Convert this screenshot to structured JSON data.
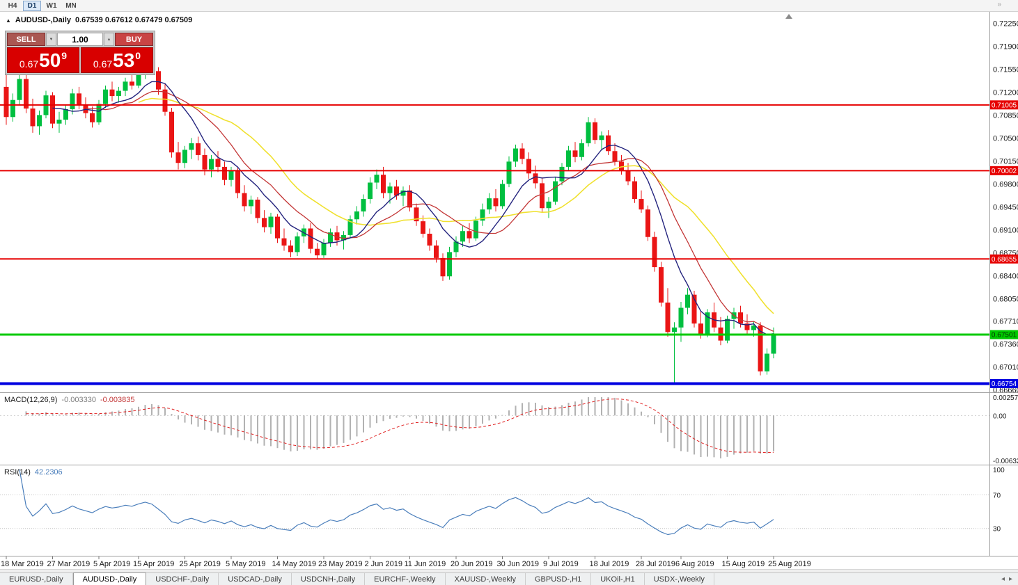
{
  "toolbar": {
    "timeframes": [
      {
        "label": "H4",
        "active": false
      },
      {
        "label": "D1",
        "active": true
      },
      {
        "label": "W1",
        "active": false
      },
      {
        "label": "MN",
        "active": false
      }
    ],
    "overflow_icon": "»"
  },
  "chart": {
    "symbol_title": "AUDUSD-,Daily",
    "ohlc_line": "0.67539 0.67612 0.67479 0.67509",
    "marker_icon": "▲",
    "trade_panel": {
      "sell_label": "SELL",
      "buy_label": "BUY",
      "volume": "1.00",
      "spinner_down_icon": "▼",
      "spinner_up_icon": "▲",
      "sell_price": {
        "prefix": "0.67",
        "big": "50",
        "sup": "9"
      },
      "buy_price": {
        "prefix": "0.67",
        "big": "53",
        "sup": "0"
      }
    },
    "price_axis_ticks": [
      "0.72250",
      "0.71900",
      "0.71550",
      "0.71200",
      "0.70850",
      "0.70500",
      "0.70150",
      "0.69800",
      "0.69450",
      "0.69100",
      "0.68750",
      "0.68400",
      "0.68050",
      "0.67710",
      "0.67360",
      "0.67010",
      "0.66660"
    ],
    "price_max": 0.7234,
    "price_min": 0.66642,
    "up_color": "#00bf40",
    "down_color": "#ea1515",
    "moving_averages": [
      {
        "period": 21,
        "color": "#f0e130",
        "width": 1.6
      },
      {
        "period": 13,
        "color": "#c33636",
        "width": 1.3
      },
      {
        "period": 8,
        "color": "#24247e",
        "width": 1.4
      }
    ],
    "hlines": [
      {
        "price": 0.71005,
        "label": "0.71005",
        "color": "#e60000",
        "thickness": 2,
        "text_color": "#ffffff"
      },
      {
        "price": 0.70002,
        "label": "0.70002",
        "color": "#e60000",
        "thickness": 2,
        "text_color": "#ffffff"
      },
      {
        "price": 0.68655,
        "label": "0.68655",
        "color": "#e60000",
        "thickness": 2,
        "text_color": "#ffffff"
      },
      {
        "price": 0.67501,
        "label": "0.67501",
        "color": "#00ca00",
        "thickness": 3,
        "text_color": "#063306"
      },
      {
        "price": 0.66754,
        "label": "0.66754",
        "color": "#0000e0",
        "thickness": 4,
        "text_color": "#ffffff"
      }
    ],
    "date_labels": [
      "18 Mar 2019",
      "27 Mar 2019",
      "5 Apr 2019",
      "15 Apr 2019",
      "25 Apr 2019",
      "5 May 2019",
      "14 May 2019",
      "23 May 2019",
      "2 Jun 2019",
      "11 Jun 2019",
      "20 Jun 2019",
      "30 Jun 2019",
      "9 Jul 2019",
      "18 Jul 2019",
      "28 Jul 2019",
      "6 Aug 2019",
      "15 Aug 2019",
      "25 Aug 2019"
    ],
    "candles_ohlc": [
      [
        0.7128,
        0.715,
        0.707,
        0.7082
      ],
      [
        0.7082,
        0.7118,
        0.7075,
        0.7108
      ],
      [
        0.7108,
        0.7152,
        0.71,
        0.714
      ],
      [
        0.714,
        0.7148,
        0.7088,
        0.7095
      ],
      [
        0.7095,
        0.711,
        0.7058,
        0.7068
      ],
      [
        0.7068,
        0.7092,
        0.7055,
        0.7085
      ],
      [
        0.7085,
        0.7122,
        0.708,
        0.7115
      ],
      [
        0.7115,
        0.712,
        0.7065,
        0.7072
      ],
      [
        0.7072,
        0.709,
        0.7058,
        0.7078
      ],
      [
        0.7078,
        0.71,
        0.707,
        0.7094
      ],
      [
        0.7094,
        0.7125,
        0.7086,
        0.7118
      ],
      [
        0.7118,
        0.7128,
        0.7094,
        0.71
      ],
      [
        0.71,
        0.7112,
        0.708,
        0.7088
      ],
      [
        0.7088,
        0.7098,
        0.7066,
        0.7074
      ],
      [
        0.7074,
        0.7108,
        0.707,
        0.7102
      ],
      [
        0.7102,
        0.713,
        0.7096,
        0.7124
      ],
      [
        0.7124,
        0.7136,
        0.7106,
        0.7114
      ],
      [
        0.7114,
        0.7128,
        0.7104,
        0.7122
      ],
      [
        0.7122,
        0.7142,
        0.7114,
        0.7136
      ],
      [
        0.7136,
        0.715,
        0.7124,
        0.713
      ],
      [
        0.713,
        0.7155,
        0.7126,
        0.7148
      ],
      [
        0.7148,
        0.7168,
        0.714,
        0.7162
      ],
      [
        0.7162,
        0.7175,
        0.7146,
        0.7152
      ],
      [
        0.7152,
        0.7158,
        0.7116,
        0.7124
      ],
      [
        0.7124,
        0.7132,
        0.7084,
        0.709
      ],
      [
        0.709,
        0.7096,
        0.702,
        0.7028
      ],
      [
        0.7028,
        0.7044,
        0.7002,
        0.7012
      ],
      [
        0.7012,
        0.7038,
        0.7004,
        0.7032
      ],
      [
        0.7032,
        0.705,
        0.7018,
        0.7042
      ],
      [
        0.7042,
        0.7052,
        0.7016,
        0.7024
      ],
      [
        0.7024,
        0.7034,
        0.6993,
        0.7002
      ],
      [
        0.7002,
        0.7024,
        0.699,
        0.7018
      ],
      [
        0.7018,
        0.703,
        0.6998,
        0.7006
      ],
      [
        0.7006,
        0.7014,
        0.6978,
        0.6986
      ],
      [
        0.6986,
        0.7006,
        0.6976,
        0.7
      ],
      [
        0.7,
        0.7006,
        0.6958,
        0.6966
      ],
      [
        0.6966,
        0.6978,
        0.6938,
        0.6946
      ],
      [
        0.6946,
        0.6962,
        0.6934,
        0.6956
      ],
      [
        0.6956,
        0.696,
        0.692,
        0.6928
      ],
      [
        0.6928,
        0.694,
        0.6906,
        0.6914
      ],
      [
        0.6914,
        0.6936,
        0.6904,
        0.693
      ],
      [
        0.693,
        0.6934,
        0.689,
        0.6897
      ],
      [
        0.6897,
        0.6912,
        0.6878,
        0.6886
      ],
      [
        0.6886,
        0.6894,
        0.6868,
        0.6876
      ],
      [
        0.6876,
        0.6906,
        0.687,
        0.69
      ],
      [
        0.69,
        0.6918,
        0.689,
        0.6912
      ],
      [
        0.6912,
        0.692,
        0.6874,
        0.6881
      ],
      [
        0.6881,
        0.689,
        0.6866,
        0.6871
      ],
      [
        0.6871,
        0.6896,
        0.6867,
        0.689
      ],
      [
        0.689,
        0.6912,
        0.6884,
        0.6906
      ],
      [
        0.6906,
        0.6916,
        0.6886,
        0.6894
      ],
      [
        0.6894,
        0.6908,
        0.688,
        0.6902
      ],
      [
        0.6902,
        0.6932,
        0.6897,
        0.6926
      ],
      [
        0.6926,
        0.6946,
        0.6918,
        0.6938
      ],
      [
        0.6938,
        0.6964,
        0.693,
        0.6957
      ],
      [
        0.6957,
        0.699,
        0.695,
        0.6982
      ],
      [
        0.6982,
        0.7002,
        0.6972,
        0.6994
      ],
      [
        0.6994,
        0.7006,
        0.6958,
        0.6966
      ],
      [
        0.6966,
        0.6982,
        0.695,
        0.6976
      ],
      [
        0.6976,
        0.6986,
        0.6956,
        0.6962
      ],
      [
        0.6962,
        0.6976,
        0.6946,
        0.697
      ],
      [
        0.697,
        0.6978,
        0.6938,
        0.6944
      ],
      [
        0.6944,
        0.695,
        0.6916,
        0.6923
      ],
      [
        0.6923,
        0.6932,
        0.6898,
        0.6904
      ],
      [
        0.6904,
        0.6912,
        0.6878,
        0.6886
      ],
      [
        0.6886,
        0.6894,
        0.686,
        0.6867
      ],
      [
        0.6867,
        0.6874,
        0.6832,
        0.6839
      ],
      [
        0.6839,
        0.6884,
        0.6834,
        0.6876
      ],
      [
        0.6876,
        0.69,
        0.6868,
        0.6892
      ],
      [
        0.6892,
        0.6916,
        0.6884,
        0.6908
      ],
      [
        0.6908,
        0.692,
        0.689,
        0.6897
      ],
      [
        0.6897,
        0.693,
        0.6893,
        0.6924
      ],
      [
        0.6924,
        0.695,
        0.6916,
        0.6941
      ],
      [
        0.6941,
        0.6966,
        0.6934,
        0.6958
      ],
      [
        0.6958,
        0.6972,
        0.6938,
        0.6946
      ],
      [
        0.6946,
        0.6986,
        0.6942,
        0.698
      ],
      [
        0.698,
        0.7022,
        0.6975,
        0.7014
      ],
      [
        0.7014,
        0.704,
        0.7006,
        0.7034
      ],
      [
        0.7034,
        0.7042,
        0.701,
        0.7018
      ],
      [
        0.7018,
        0.7028,
        0.6988,
        0.6996
      ],
      [
        0.6996,
        0.7008,
        0.6973,
        0.6981
      ],
      [
        0.6981,
        0.699,
        0.6936,
        0.6943
      ],
      [
        0.6943,
        0.696,
        0.6928,
        0.6953
      ],
      [
        0.6953,
        0.699,
        0.6948,
        0.6984
      ],
      [
        0.6984,
        0.7012,
        0.6978,
        0.7006
      ],
      [
        0.7006,
        0.7038,
        0.7,
        0.7031
      ],
      [
        0.7031,
        0.7044,
        0.7013,
        0.7021
      ],
      [
        0.7021,
        0.7048,
        0.7016,
        0.7042
      ],
      [
        0.7042,
        0.7082,
        0.7037,
        0.7074
      ],
      [
        0.7074,
        0.708,
        0.7041,
        0.7047
      ],
      [
        0.7047,
        0.706,
        0.7031,
        0.7054
      ],
      [
        0.7054,
        0.7062,
        0.7024,
        0.703
      ],
      [
        0.703,
        0.7042,
        0.7008,
        0.7014
      ],
      [
        0.7014,
        0.7024,
        0.6994,
        0.7
      ],
      [
        0.7,
        0.7012,
        0.6978,
        0.6984
      ],
      [
        0.6984,
        0.6991,
        0.6951,
        0.6957
      ],
      [
        0.6957,
        0.697,
        0.6936,
        0.6941
      ],
      [
        0.6941,
        0.6947,
        0.6893,
        0.6899
      ],
      [
        0.6899,
        0.6907,
        0.6846,
        0.6853
      ],
      [
        0.6853,
        0.6861,
        0.6793,
        0.6799
      ],
      [
        0.6799,
        0.6821,
        0.6747,
        0.6754
      ],
      [
        0.6754,
        0.6769,
        0.6676,
        0.6761
      ],
      [
        0.6761,
        0.68,
        0.6739,
        0.6791
      ],
      [
        0.6791,
        0.6821,
        0.6781,
        0.6811
      ],
      [
        0.6811,
        0.6817,
        0.6761,
        0.6767
      ],
      [
        0.6767,
        0.6787,
        0.6744,
        0.6751
      ],
      [
        0.6751,
        0.6789,
        0.6746,
        0.6784
      ],
      [
        0.6784,
        0.6799,
        0.6754,
        0.6761
      ],
      [
        0.6761,
        0.6777,
        0.6734,
        0.6741
      ],
      [
        0.6741,
        0.6779,
        0.6737,
        0.6774
      ],
      [
        0.6774,
        0.6791,
        0.6759,
        0.6784
      ],
      [
        0.6784,
        0.6794,
        0.6761,
        0.6767
      ],
      [
        0.6767,
        0.6781,
        0.6751,
        0.6757
      ],
      [
        0.6757,
        0.6771,
        0.6747,
        0.6764
      ],
      [
        0.6764,
        0.6769,
        0.6688,
        0.6694
      ],
      [
        0.6694,
        0.6729,
        0.6689,
        0.6721
      ],
      [
        0.6721,
        0.6761,
        0.6714,
        0.6751
      ]
    ]
  },
  "macd": {
    "label": "MACD(12,26,9)",
    "main_value": "-0.003330",
    "signal_value": "-0.003835",
    "fast": 12,
    "slow": 26,
    "signal": 9,
    "scale_max": 0.002574,
    "scale_min": -0.006326,
    "axis_labels": [
      {
        "value": 0.002574,
        "text": "0.002574"
      },
      {
        "value": 0,
        "text": "0.00"
      },
      {
        "value": -0.006326,
        "text": "-0.006326"
      }
    ],
    "histogram_color": "#b2b2b2",
    "signal_color": "#e02020"
  },
  "rsi": {
    "label": "RSI(14)",
    "value": "42.2306",
    "period": 14,
    "levels": [
      70,
      30
    ],
    "axis_labels": [
      {
        "value": 100,
        "text": "100"
      },
      {
        "value": 70,
        "text": "70"
      },
      {
        "value": 30,
        "text": "30"
      }
    ],
    "line_color": "#4a7ebb"
  },
  "tabs": {
    "items": [
      {
        "label": "EURUSD-,Daily",
        "active": false
      },
      {
        "label": "AUDUSD-,Daily",
        "active": true
      },
      {
        "label": "USDCHF-,Daily",
        "active": false
      },
      {
        "label": "USDCAD-,Daily",
        "active": false
      },
      {
        "label": "USDCNH-,Daily",
        "active": false
      },
      {
        "label": "EURCHF-,Weekly",
        "active": false
      },
      {
        "label": "XAUUSD-,Weekly",
        "active": false
      },
      {
        "label": "GBPUSD-,H1",
        "active": false
      },
      {
        "label": "UKOil-,H1",
        "active": false
      },
      {
        "label": "USDX-,Weekly",
        "active": false
      }
    ],
    "nav_left_icon": "◂",
    "nav_right_icon": "▸"
  }
}
